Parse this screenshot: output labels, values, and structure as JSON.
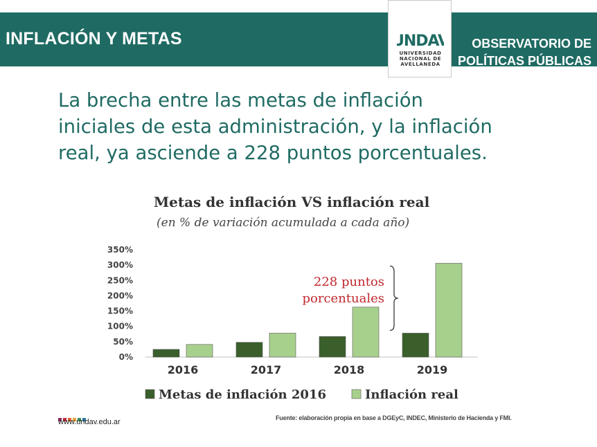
{
  "header": {
    "title": "INFLACIÓN Y METAS",
    "observatorio_line1": "OBSERVATORIO DE",
    "observatorio_line2": "POLÍTICAS PÚBLICAS",
    "brand_color": "#1f6b63"
  },
  "logo": {
    "mark": "UNDAV",
    "line1": "UNIVERSIDAD",
    "line2": "NACIONAL DE",
    "line3": "AVELLANEDA"
  },
  "headline": {
    "line1": "La brecha entre las metas de inflación",
    "line2": "iniciales de esta administración, y la inflación",
    "line3": "real, ya asciende a 228 puntos porcentuales."
  },
  "chart_data": {
    "type": "bar",
    "title": "Metas de inflación VS inflación real",
    "subtitle": "(en % de variación acumulada a cada año)",
    "categories": [
      "2016",
      "2017",
      "2018",
      "2019"
    ],
    "series": [
      {
        "name": "Metas de inflación 2016",
        "values": [
          25,
          48,
          67,
          78
        ],
        "color": "#3a5f2b"
      },
      {
        "name": "Inflación real",
        "values": [
          41,
          78,
          163,
          306
        ],
        "color": "#a8d08d"
      }
    ],
    "ylim": [
      0,
      350
    ],
    "yticks": [
      "0%",
      "50%",
      "100%",
      "150%",
      "200%",
      "250%",
      "300%",
      "350%"
    ],
    "annotation": {
      "line1": "228 puntos",
      "line2": "porcentuales",
      "color": "#c0272d"
    },
    "grid": false,
    "legend": "bottom"
  },
  "footer": {
    "url": "www.undav.edu.ar",
    "source": "Fuente: elaboración propia en base a DGEyC, INDEC, Ministerio de Hacienda y FMI."
  }
}
